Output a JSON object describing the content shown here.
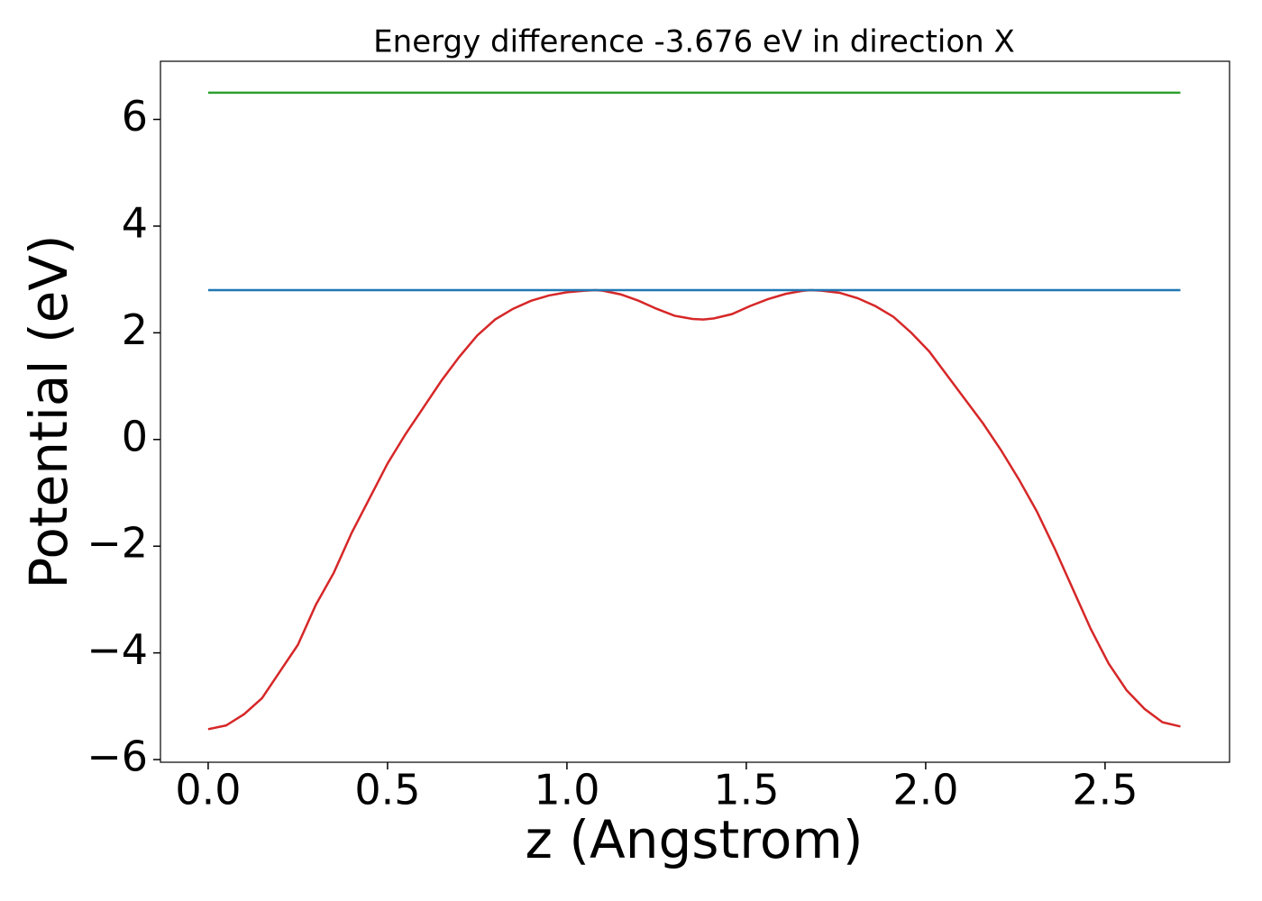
{
  "chart_data": {
    "type": "line",
    "title": "Energy difference -3.676 eV in direction X",
    "x_label": "z (Angstrom)",
    "y_label": "Potential (eV)",
    "xlim": [
      -0.133,
      2.847
    ],
    "ylim": [
      -6.05,
      7.09
    ],
    "xticks": [
      {
        "value": 0,
        "label": "0.0"
      },
      0.5,
      {
        "value": 1,
        "label": "1.0"
      },
      1.5,
      {
        "value": 2,
        "label": "2.0"
      },
      2.5
    ],
    "yticks": [
      {
        "value": -6,
        "label": "−6"
      },
      {
        "value": -4,
        "label": "−4"
      },
      {
        "value": -2,
        "label": "−2"
      },
      0,
      2,
      4,
      6
    ],
    "series": [
      {
        "color": "#d62728",
        "x": [
          0,
          0.05,
          0.1,
          0.15,
          0.2,
          0.25,
          0.3,
          0.35,
          0.4,
          0.45,
          0.5,
          0.55,
          0.6,
          0.65,
          0.7,
          0.75,
          0.8,
          0.85,
          0.9,
          0.95,
          1.0,
          1.05,
          1.08,
          1.1,
          1.15,
          1.2,
          1.25,
          1.3,
          1.35,
          1.38,
          1.41,
          1.46,
          1.51,
          1.56,
          1.61,
          1.66,
          1.68,
          1.71,
          1.76,
          1.81,
          1.86,
          1.91,
          1.96,
          2.01,
          2.06,
          2.11,
          2.16,
          2.21,
          2.26,
          2.31,
          2.36,
          2.41,
          2.46,
          2.51,
          2.56,
          2.61,
          2.66,
          2.71
        ],
        "values": [
          -5.43,
          -5.36,
          -5.15,
          -4.85,
          -4.35,
          -3.85,
          -3.1,
          -2.5,
          -1.75,
          -1.1,
          -0.45,
          0.1,
          0.6,
          1.1,
          1.55,
          1.95,
          2.25,
          2.45,
          2.6,
          2.7,
          2.76,
          2.79,
          2.8,
          2.79,
          2.72,
          2.6,
          2.45,
          2.32,
          2.26,
          2.25,
          2.27,
          2.35,
          2.5,
          2.63,
          2.73,
          2.79,
          2.8,
          2.79,
          2.75,
          2.65,
          2.5,
          2.3,
          2.0,
          1.65,
          1.2,
          0.75,
          0.3,
          -0.2,
          -0.75,
          -1.35,
          -2.05,
          -2.8,
          -3.55,
          -4.2,
          -4.7,
          -5.05,
          -5.3,
          -5.38
        ]
      },
      {
        "color": "#1f77b4",
        "x": [
          0,
          2.71
        ],
        "values": [
          2.8,
          2.8
        ]
      },
      {
        "color": "#2ca02c",
        "x": [
          0,
          2.71
        ],
        "values": [
          6.5,
          6.5
        ]
      }
    ]
  }
}
